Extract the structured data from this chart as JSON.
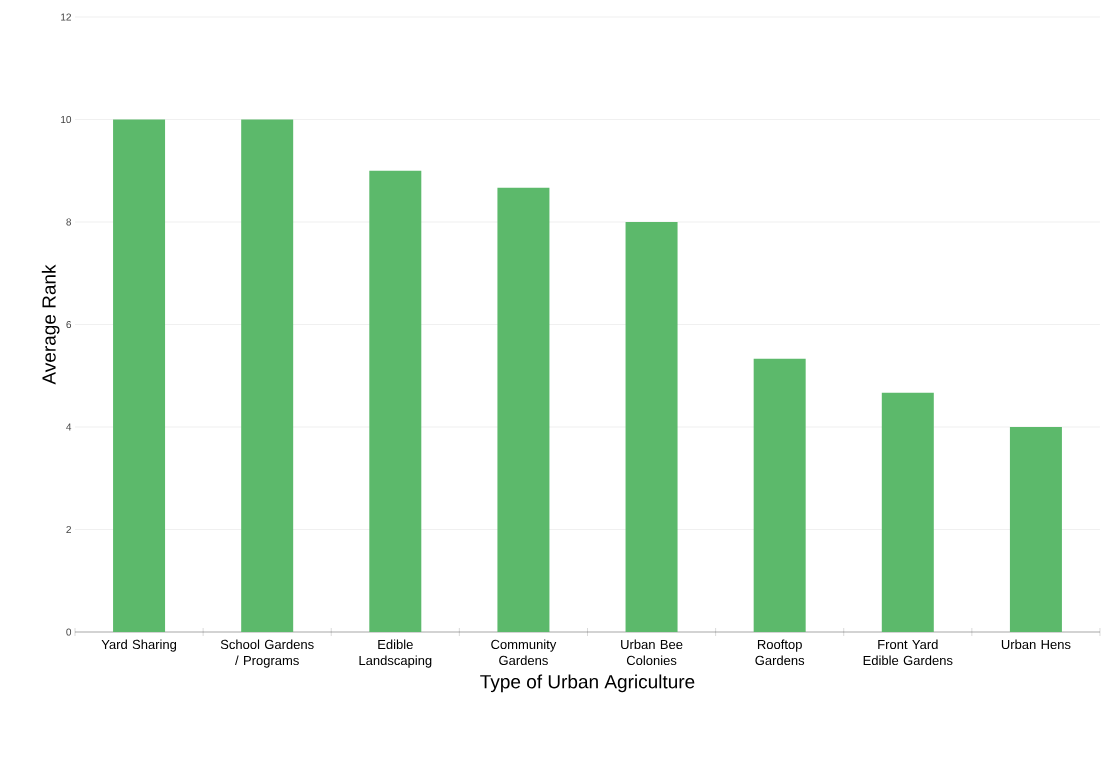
{
  "chart_data": {
    "type": "bar",
    "categories": [
      "Yard Sharing",
      "School Gardens / Programs",
      "Edible Landscaping",
      "Community Gardens",
      "Urban Bee Colonies",
      "Rooftop Gardens",
      "Front Yard Edible Gardens",
      "Urban Hens"
    ],
    "values": [
      10,
      10,
      9,
      8.67,
      8,
      5.33,
      4.67,
      4
    ],
    "color": "#5cb96b",
    "xlabel": "Type of Urban Agriculture",
    "ylabel": "Average Rank",
    "ylim": [
      0,
      12
    ],
    "yticks": [
      0,
      2,
      4,
      6,
      8,
      10,
      12
    ],
    "grid": "y"
  }
}
